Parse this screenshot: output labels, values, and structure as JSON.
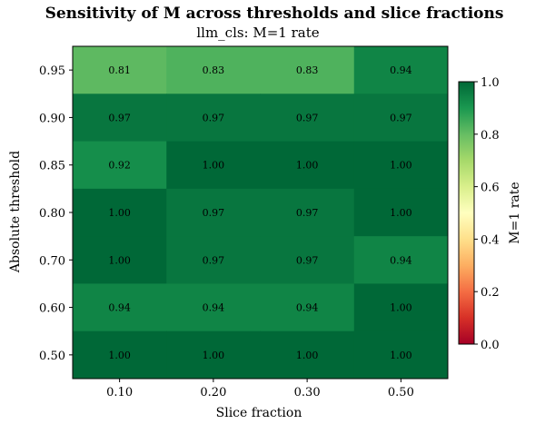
{
  "chart_data": {
    "type": "heatmap",
    "title": "Sensitivity of M across thresholds and slice fractions",
    "subtitle": "llm_cls: M=1 rate",
    "xlabel": "Slice fraction",
    "ylabel": "Absolute threshold",
    "x_categories": [
      "0.10",
      "0.20",
      "0.30",
      "0.50"
    ],
    "y_categories": [
      "0.95",
      "0.90",
      "0.85",
      "0.80",
      "0.70",
      "0.60",
      "0.50"
    ],
    "values": [
      [
        0.81,
        0.83,
        0.83,
        0.94
      ],
      [
        0.97,
        0.97,
        0.97,
        0.97
      ],
      [
        0.92,
        1.0,
        1.0,
        1.0
      ],
      [
        1.0,
        0.97,
        0.97,
        1.0
      ],
      [
        1.0,
        0.97,
        0.97,
        0.94
      ],
      [
        0.94,
        0.94,
        0.94,
        1.0
      ],
      [
        1.0,
        1.0,
        1.0,
        1.0
      ]
    ],
    "value_labels": [
      [
        "0.81",
        "0.83",
        "0.83",
        "0.94"
      ],
      [
        "0.97",
        "0.97",
        "0.97",
        "0.97"
      ],
      [
        "0.92",
        "1.00",
        "1.00",
        "1.00"
      ],
      [
        "1.00",
        "0.97",
        "0.97",
        "1.00"
      ],
      [
        "1.00",
        "0.97",
        "0.97",
        "0.94"
      ],
      [
        "0.94",
        "0.94",
        "0.94",
        "1.00"
      ],
      [
        "1.00",
        "1.00",
        "1.00",
        "1.00"
      ]
    ],
    "colormap": "RdYlGn",
    "vmin": 0.0,
    "vmax": 1.0,
    "colorbar": {
      "label": "M=1 rate",
      "ticks": [
        0.0,
        0.2,
        0.4,
        0.6,
        0.8,
        1.0
      ],
      "tick_labels": [
        "0.0",
        "0.2",
        "0.4",
        "0.6",
        "0.8",
        "1.0"
      ]
    }
  }
}
